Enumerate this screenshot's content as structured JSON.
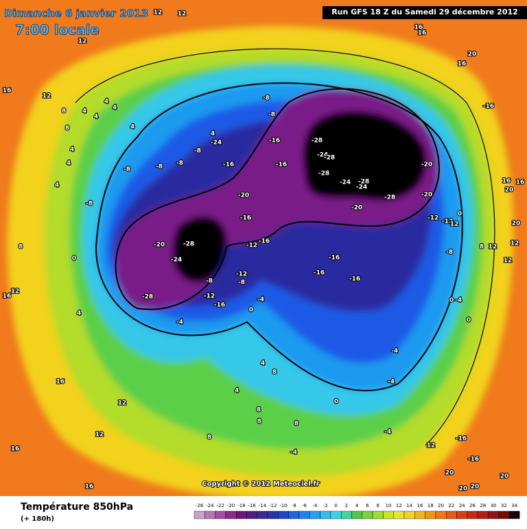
{
  "header": {
    "title": "Dimanche 6 janvier 2013",
    "time": "7:00 locale",
    "run": "Run GFS 18 Z du Samedi 29 décembre 2012"
  },
  "map": {
    "labels": [
      12,
      12,
      12,
      16,
      12,
      8,
      8,
      4,
      4,
      4,
      4,
      4,
      4,
      4,
      4,
      -8,
      -8,
      -8,
      -8,
      -8,
      4,
      -24,
      -16,
      -8,
      -8,
      -16,
      -16,
      -20,
      -16,
      -16,
      -12,
      -20,
      -28,
      -24,
      -28,
      -8,
      -12,
      -16,
      -8,
      -12,
      -4,
      0,
      -4,
      -28,
      -24,
      -28,
      -28,
      -24,
      -28,
      -24,
      -28,
      -20,
      -20,
      -20,
      -12,
      -12,
      12,
      0,
      -16,
      -16,
      -16,
      -8,
      8,
      12,
      12,
      12,
      20,
      20,
      16,
      16,
      -16,
      20,
      16,
      16,
      16,
      -4,
      -4,
      0,
      -4,
      12,
      -16,
      -16,
      20,
      20,
      20,
      20,
      0,
      -4,
      0,
      4,
      4,
      8,
      8,
      8,
      8,
      -4,
      8,
      16,
      12,
      8,
      0,
      4,
      16,
      12,
      12,
      16,
      16
    ]
  },
  "copyright": "Copyright © 2012 Meteociel.fr",
  "footer": {
    "title": "Température 850hPa",
    "lead": "(+ 180h)"
  },
  "legend": {
    "ticks": [
      -26,
      -24,
      -22,
      -20,
      -18,
      -16,
      -14,
      -12,
      -10,
      -8,
      -6,
      -4,
      -2,
      0,
      2,
      4,
      6,
      8,
      10,
      12,
      14,
      16,
      18,
      20,
      22,
      24,
      26,
      28,
      30,
      32,
      34
    ],
    "colors": [
      "#c8a0c8",
      "#b478b4",
      "#a050a0",
      "#8c288c",
      "#6e1478",
      "#501e82",
      "#3c2896",
      "#2832aa",
      "#1e46c8",
      "#1e64e6",
      "#1e82f0",
      "#28a0f0",
      "#32bef0",
      "#3cd2dc",
      "#46d2a0",
      "#50c850",
      "#78d23c",
      "#a0dc32",
      "#c8e628",
      "#e6e632",
      "#f0d228",
      "#f0b41e",
      "#f09614",
      "#f07814",
      "#e65a14",
      "#dc3c14",
      "#c82814",
      "#b41e14",
      "#961414",
      "#780a0a",
      "#1e0000"
    ]
  }
}
